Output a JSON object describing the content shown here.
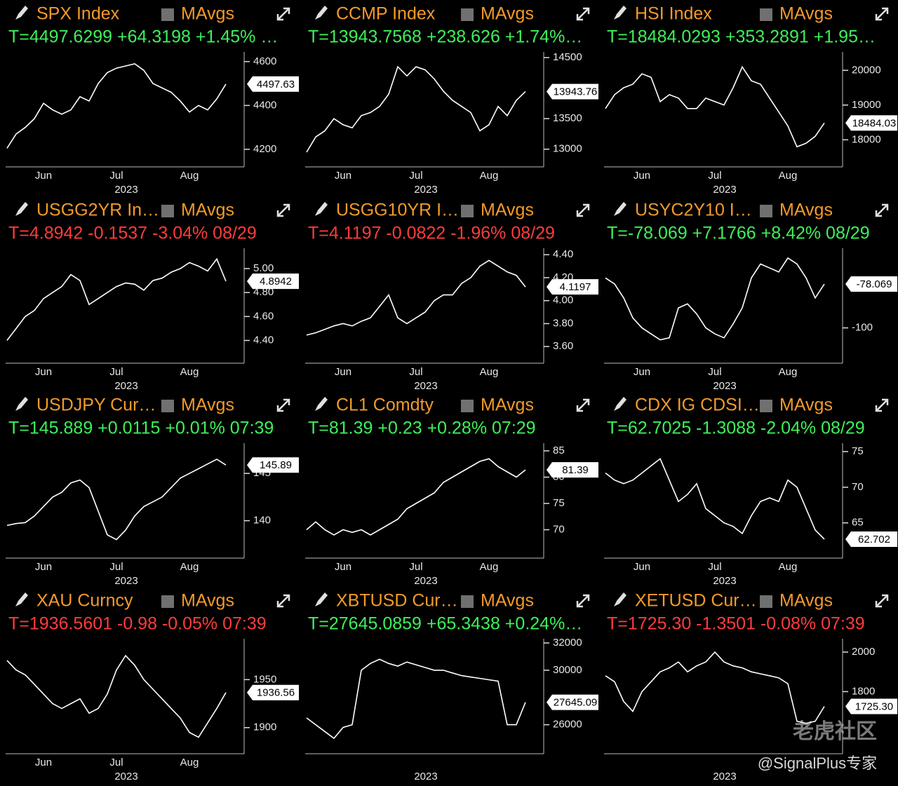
{
  "chart_data": [
    {
      "type": "line",
      "title": "SPX Index",
      "indicator": "MAvgs",
      "subtitle": "T=4497.6299 +64.3198 +1.45% …",
      "subtitle_color": "#3ef05a",
      "annotation": "4497.63",
      "x_label": "2023",
      "color": "#ffffff",
      "categories": [
        null,
        null,
        null,
        null,
        "Jun",
        null,
        null,
        null,
        null,
        null,
        null,
        null,
        "Jul",
        null,
        null,
        null,
        null,
        null,
        null,
        null,
        "Aug",
        null,
        null,
        null,
        null
      ],
      "values": [
        4205,
        4270,
        4300,
        4340,
        4410,
        4380,
        4360,
        4380,
        4440,
        4420,
        4500,
        4550,
        4570,
        4580,
        4590,
        4560,
        4500,
        4480,
        4460,
        4420,
        4370,
        4400,
        4380,
        4430,
        4497.63
      ],
      "ylim": [
        4120,
        4625
      ],
      "yticks": [
        4200,
        4400,
        4600
      ]
    },
    {
      "type": "line",
      "title": "CCMP Index",
      "indicator": "MAvgs",
      "subtitle": "T=13943.7568 +238.626 +1.74%…",
      "subtitle_color": "#3ef05a",
      "annotation": "13943.76",
      "x_label": "2023",
      "color": "#ffffff",
      "categories": [
        null,
        null,
        null,
        null,
        "Jun",
        null,
        null,
        null,
        null,
        null,
        null,
        null,
        "Jul",
        null,
        null,
        null,
        null,
        null,
        null,
        null,
        "Aug",
        null,
        null,
        null,
        null
      ],
      "values": [
        12950,
        13200,
        13300,
        13500,
        13400,
        13350,
        13550,
        13600,
        13700,
        13900,
        14350,
        14200,
        14350,
        14300,
        14150,
        13950,
        13800,
        13700,
        13600,
        13300,
        13400,
        13700,
        13550,
        13800,
        13943.76
      ],
      "ylim": [
        12710,
        14525
      ],
      "yticks": [
        13000,
        13500,
        14500
      ]
    },
    {
      "type": "line",
      "title": "HSI Index",
      "indicator": "MAvgs",
      "subtitle": "T=18484.0293 +353.2891 +1.95…",
      "subtitle_color": "#3ef05a",
      "annotation": "18484.03",
      "x_label": "2023",
      "color": "#ffffff",
      "categories": [
        null,
        null,
        null,
        null,
        "Jun",
        null,
        null,
        null,
        null,
        null,
        null,
        null,
        "Jul",
        null,
        null,
        null,
        null,
        null,
        null,
        null,
        "Aug",
        null,
        null,
        null,
        null
      ],
      "values": [
        18900,
        19300,
        19500,
        19600,
        19900,
        19800,
        19100,
        19300,
        19200,
        18900,
        18900,
        19200,
        19100,
        19000,
        19500,
        20100,
        19700,
        19600,
        19200,
        18800,
        18400,
        17800,
        17900,
        18100,
        18484.03
      ],
      "ylim": [
        17220,
        20410
      ],
      "yticks": [
        18000,
        19000,
        20000
      ]
    },
    {
      "type": "line",
      "title": "USGG2YR In…",
      "indicator": "MAvgs",
      "subtitle": "T=4.8942 -0.1537 -3.04% 08/29",
      "subtitle_color": "#ff3c3c",
      "annotation": "4.8942",
      "x_label": "2023",
      "color": "#ffffff",
      "categories": [
        null,
        null,
        null,
        null,
        "Jun",
        null,
        null,
        null,
        null,
        null,
        null,
        null,
        "Jul",
        null,
        null,
        null,
        null,
        null,
        null,
        null,
        "Aug",
        null,
        null,
        null,
        null
      ],
      "values": [
        4.4,
        4.5,
        4.6,
        4.65,
        4.75,
        4.8,
        4.85,
        4.95,
        4.9,
        4.7,
        4.75,
        4.8,
        4.85,
        4.88,
        4.87,
        4.82,
        4.9,
        4.92,
        4.97,
        5.0,
        5.05,
        5.02,
        4.98,
        5.08,
        4.8942
      ],
      "ylim": [
        4.21,
        5.135
      ],
      "yticks": [
        {
          "value": 4.4,
          "label": "4.40"
        },
        {
          "value": 4.6,
          "label": "4.60"
        },
        {
          "value": 4.8,
          "label": "4.80"
        },
        {
          "value": 5,
          "label": "5.00"
        }
      ]
    },
    {
      "type": "line",
      "title": "USGG10YR I…",
      "indicator": "MAvgs",
      "subtitle": "T=4.1197 -0.0822 -1.96% 08/29",
      "subtitle_color": "#ff3c3c",
      "annotation": "4.1197",
      "x_label": "2023",
      "color": "#ffffff",
      "categories": [
        null,
        null,
        null,
        null,
        "Jun",
        null,
        null,
        null,
        null,
        null,
        null,
        null,
        "Jul",
        null,
        null,
        null,
        null,
        null,
        null,
        null,
        "Aug",
        null,
        null,
        null,
        null
      ],
      "values": [
        3.7,
        3.72,
        3.75,
        3.78,
        3.8,
        3.78,
        3.82,
        3.85,
        3.95,
        4.05,
        3.85,
        3.8,
        3.85,
        3.9,
        4.0,
        4.05,
        4.05,
        4.15,
        4.2,
        4.3,
        4.35,
        4.3,
        4.25,
        4.22,
        4.1197
      ],
      "ylim": [
        3.455,
        4.42
      ],
      "yticks": [
        {
          "value": 3.6,
          "label": "3.60"
        },
        {
          "value": 3.8,
          "label": "3.80"
        },
        {
          "value": 4,
          "label": "4.00"
        },
        {
          "value": 4.2,
          "label": "4.20"
        },
        {
          "value": 4.4,
          "label": "4.40"
        }
      ]
    },
    {
      "type": "line",
      "title": "USYC2Y10 I…",
      "indicator": "MAvgs",
      "subtitle": "T=-78.069 +7.1766 +8.42% 08/29",
      "subtitle_color": "#3ef05a",
      "annotation": "-78.069",
      "x_label": "2023",
      "color": "#ffffff",
      "categories": [
        null,
        null,
        null,
        null,
        "Jun",
        null,
        null,
        null,
        null,
        null,
        null,
        null,
        "Jul",
        null,
        null,
        null,
        null,
        null,
        null,
        null,
        "Aug",
        null,
        null,
        null,
        null
      ],
      "values": [
        -75,
        -78,
        -85,
        -95,
        -100,
        -103,
        -106,
        -105,
        -90,
        -88,
        -93,
        -100,
        -103,
        -105,
        -98,
        -90,
        -75,
        -68,
        -70,
        -72,
        -65,
        -68,
        -75,
        -85,
        -78.069
      ],
      "ylim": [
        -117.7,
        -62.2
      ],
      "yticks": [
        -100
      ]
    },
    {
      "type": "line",
      "title": "USDJPY Cur…",
      "indicator": "MAvgs",
      "subtitle": "T=145.889 +0.0115 +0.01% 07:39",
      "subtitle_color": "#3ef05a",
      "annotation": "145.89",
      "x_label": "2023",
      "color": "#ffffff",
      "categories": [
        null,
        null,
        null,
        null,
        "Jun",
        null,
        null,
        null,
        null,
        null,
        null,
        null,
        "Jul",
        null,
        null,
        null,
        null,
        null,
        null,
        null,
        "Aug",
        null,
        null,
        null,
        null
      ],
      "values": [
        139.5,
        139.7,
        139.8,
        140.5,
        141.5,
        142.5,
        143,
        144,
        144.3,
        143.5,
        141,
        138.5,
        138,
        139,
        140.5,
        141.5,
        142,
        142.5,
        143.5,
        144.5,
        145,
        145.5,
        146,
        146.5,
        145.889
      ],
      "ylim": [
        136.04,
        147.76
      ],
      "yticks": [
        140,
        145
      ]
    },
    {
      "type": "line",
      "title": "CL1 Comdty",
      "indicator": "MAvgs",
      "subtitle": "T=81.39 +0.23 +0.28% 07:29",
      "subtitle_color": "#3ef05a",
      "annotation": "81.39",
      "x_label": "2023",
      "color": "#ffffff",
      "categories": [
        null,
        null,
        null,
        null,
        "Jun",
        null,
        null,
        null,
        null,
        null,
        null,
        null,
        "Jul",
        null,
        null,
        null,
        null,
        null,
        null,
        null,
        "Aug",
        null,
        null,
        null,
        null
      ],
      "values": [
        70,
        71.5,
        70,
        69,
        70,
        69.5,
        70,
        69,
        70,
        71,
        72,
        74,
        75,
        76,
        77,
        79,
        80,
        81,
        82,
        83,
        83.5,
        82,
        81,
        80,
        81.39
      ],
      "ylim": [
        64.6,
        85.67
      ],
      "yticks": [
        70,
        75,
        80,
        85
      ]
    },
    {
      "type": "line",
      "title": "CDX IG CDSI…",
      "indicator": "MAvgs",
      "subtitle": "T=62.7025 -1.3088 -2.04% 08/29",
      "subtitle_color": "#3ef05a",
      "annotation": "62.702",
      "x_label": "2023",
      "color": "#ffffff",
      "categories": [
        null,
        null,
        null,
        null,
        "Jun",
        null,
        null,
        null,
        null,
        null,
        null,
        null,
        "Jul",
        null,
        null,
        null,
        null,
        null,
        null,
        null,
        "Aug",
        null,
        null,
        null,
        null
      ],
      "values": [
        72,
        71,
        70.5,
        71,
        72,
        73,
        74,
        71,
        68,
        69,
        70.5,
        67,
        66,
        65,
        64.5,
        63.5,
        66,
        68,
        68.5,
        68,
        71,
        70,
        67,
        64,
        62.7025
      ],
      "ylim": [
        60.05,
        75.6
      ],
      "yticks": [
        65,
        70,
        75
      ]
    },
    {
      "type": "line",
      "title": "XAU Curncy",
      "indicator": "MAvgs",
      "subtitle": "T=1936.5601 -0.98 -0.05% 07:39",
      "subtitle_color": "#ff3c3c",
      "annotation": "1936.56",
      "x_label": "2023",
      "color": "#ffffff",
      "categories": [
        null,
        null,
        null,
        null,
        "Jun",
        null,
        null,
        null,
        null,
        null,
        null,
        null,
        "Jul",
        null,
        null,
        null,
        null,
        null,
        null,
        null,
        "Aug",
        null,
        null,
        null,
        null
      ],
      "values": [
        1970,
        1960,
        1955,
        1945,
        1935,
        1925,
        1920,
        1925,
        1930,
        1915,
        1920,
        1935,
        1960,
        1975,
        1965,
        1950,
        1940,
        1930,
        1920,
        1910,
        1895,
        1890,
        1905,
        1920,
        1936.56
      ],
      "ylim": [
        1872.8,
        1988.2
      ],
      "yticks": [
        1900,
        1950
      ]
    },
    {
      "type": "line",
      "title": "XBTUSD Cur…",
      "indicator": "MAvgs",
      "subtitle": "T=27645.0859 +65.3438 +0.24%…",
      "subtitle_color": "#3ef05a",
      "annotation": "27645.09",
      "x_label": "2023",
      "color": "#ffffff",
      "categories": [
        null,
        null,
        null,
        null,
        null,
        null,
        null,
        null,
        null,
        null,
        null,
        null,
        null,
        null,
        null,
        null,
        null,
        null,
        null,
        null,
        null,
        null,
        null,
        null,
        null
      ],
      "values": [
        26500,
        26000,
        25500,
        25000,
        25800,
        26000,
        30000,
        30500,
        30800,
        30500,
        30300,
        30600,
        30400,
        30200,
        30000,
        30000,
        29800,
        29600,
        29500,
        29400,
        29300,
        29200,
        26000,
        26000,
        27645.09
      ],
      "ylim": [
        23870,
        32000
      ],
      "yticks": [
        26000,
        30000,
        32000
      ]
    },
    {
      "type": "line",
      "title": "XETUSD Cur…",
      "indicator": "MAvgs",
      "subtitle": "T=1725.30 -1.3501 -0.08% 07:39",
      "subtitle_color": "#ff3c3c",
      "annotation": "1725.30",
      "x_label": "2023",
      "color": "#ffffff",
      "categories": [
        null,
        null,
        null,
        null,
        null,
        null,
        null,
        null,
        null,
        null,
        null,
        null,
        null,
        null,
        null,
        null,
        null,
        null,
        null,
        null,
        null,
        null,
        null,
        null,
        null
      ],
      "values": [
        1880,
        1850,
        1750,
        1700,
        1800,
        1850,
        1900,
        1920,
        1950,
        1900,
        1930,
        1950,
        2000,
        1950,
        1930,
        1920,
        1900,
        1890,
        1880,
        1870,
        1840,
        1650,
        1640,
        1650,
        1725.3
      ],
      "ylim": [
        1486,
        2046
      ],
      "yticks": [
        1800,
        2000
      ]
    }
  ],
  "watermark": {
    "logo": "老虎社区",
    "handle": "@SignalPlus专家"
  }
}
